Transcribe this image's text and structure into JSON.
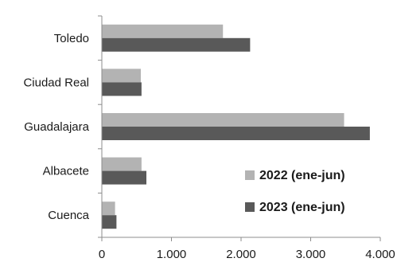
{
  "chart_data": {
    "type": "bar",
    "orientation": "horizontal",
    "categories": [
      "Toledo",
      "Ciudad Real",
      "Guadalajara",
      "Albacete",
      "Cuenca"
    ],
    "series": [
      {
        "name": "2022 (ene-jun)",
        "color": "#b3b3b3",
        "values": [
          1740,
          560,
          3480,
          570,
          190
        ]
      },
      {
        "name": "2023 (ene-jun)",
        "color": "#595959",
        "values": [
          2130,
          570,
          3850,
          640,
          210
        ]
      }
    ],
    "xlim": [
      0,
      4000
    ],
    "xticks": [
      0,
      1000,
      2000,
      3000,
      4000
    ],
    "xtick_labels": [
      "0",
      "1.000",
      "2.000",
      "3.000",
      "4.000"
    ],
    "grid": false,
    "legend_position": "bottom-right",
    "title": "",
    "xlabel": "",
    "ylabel": ""
  }
}
